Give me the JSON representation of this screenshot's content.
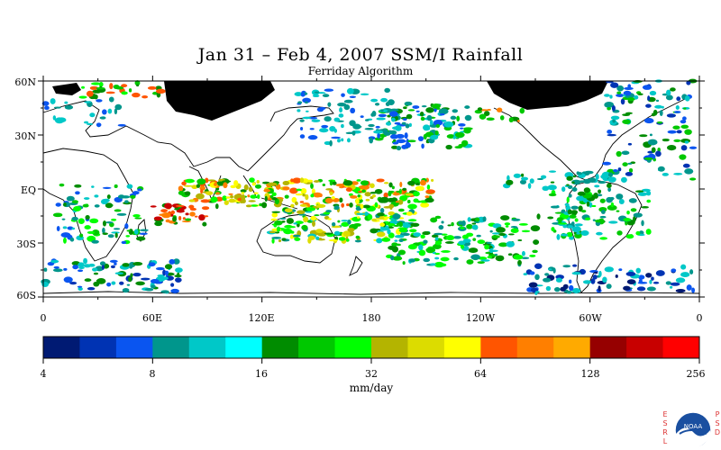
{
  "title": "Jan 31 – Feb 4, 2007 SSM/I Rainfall",
  "subtitle": "Ferriday Algorithm",
  "lat_labels": [
    "60N",
    "30N",
    "EQ",
    "30S",
    "60S"
  ],
  "lon_labels": [
    "0",
    "60E",
    "120E",
    "180",
    "120W",
    "60W",
    "0"
  ],
  "colorbar": {
    "colors": [
      "#001a73",
      "#0033b3",
      "#0a55f0",
      "#00968c",
      "#00c8c8",
      "#00ffff",
      "#008c00",
      "#00c800",
      "#00ff00",
      "#b4b400",
      "#dcdc00",
      "#ffff00",
      "#ff5500",
      "#ff7f00",
      "#ffaa00",
      "#960000",
      "#c80000",
      "#ff0000"
    ],
    "tick_labels": [
      "4",
      "8",
      "16",
      "32",
      "64",
      "128",
      "256"
    ],
    "units": "mm/day"
  },
  "logo": {
    "left_text": "ESRL",
    "right_text": "PSD",
    "badge_text": "NOAA"
  }
}
